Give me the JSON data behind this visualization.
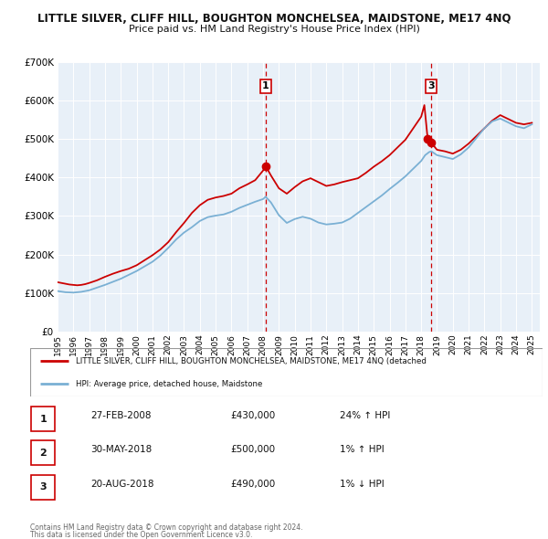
{
  "title": "LITTLE SILVER, CLIFF HILL, BOUGHTON MONCHELSEA, MAIDSTONE, ME17 4NQ",
  "subtitle": "Price paid vs. HM Land Registry's House Price Index (HPI)",
  "legend_line1": "LITTLE SILVER, CLIFF HILL, BOUGHTON MONCHELSEA, MAIDSTONE, ME17 4NQ (detached",
  "legend_line2": "HPI: Average price, detached house, Maidstone",
  "table_rows": [
    {
      "num": "1",
      "date": "27-FEB-2008",
      "price": "£430,000",
      "hpi": "24% ↑ HPI"
    },
    {
      "num": "2",
      "date": "30-MAY-2018",
      "price": "£500,000",
      "hpi": "1% ↑ HPI"
    },
    {
      "num": "3",
      "date": "20-AUG-2018",
      "price": "£490,000",
      "hpi": "1% ↓ HPI"
    }
  ],
  "footer1": "Contains HM Land Registry data © Crown copyright and database right 2024.",
  "footer2": "This data is licensed under the Open Government Licence v3.0.",
  "red_color": "#cc0000",
  "blue_color": "#7ab0d4",
  "bg_color": "#e8f0f8",
  "grid_color": "#c8d8e8",
  "outer_bg": "#f0f0f0",
  "ylim": [
    0,
    700000
  ],
  "yticks": [
    0,
    100000,
    200000,
    300000,
    400000,
    500000,
    600000,
    700000
  ],
  "xmin": 1995.0,
  "xmax": 2025.5,
  "marker1_x": 2008.16,
  "marker1_y": 430000,
  "marker2_x": 2018.41,
  "marker2_y": 500000,
  "marker3_x": 2018.64,
  "marker3_y": 490000,
  "vline1_x": 2008.16,
  "vline2_x": 2018.64,
  "red_line_data": [
    [
      1995.0,
      128000
    ],
    [
      1995.25,
      126000
    ],
    [
      1995.5,
      124000
    ],
    [
      1995.75,
      122000
    ],
    [
      1996.0,
      121000
    ],
    [
      1996.25,
      120000
    ],
    [
      1996.5,
      121000
    ],
    [
      1996.75,
      123000
    ],
    [
      1997.0,
      126000
    ],
    [
      1997.5,
      133000
    ],
    [
      1998.0,
      142000
    ],
    [
      1998.5,
      150000
    ],
    [
      1999.0,
      157000
    ],
    [
      1999.5,
      163000
    ],
    [
      2000.0,
      172000
    ],
    [
      2000.5,
      185000
    ],
    [
      2001.0,
      198000
    ],
    [
      2001.5,
      213000
    ],
    [
      2002.0,
      232000
    ],
    [
      2002.5,
      258000
    ],
    [
      2003.0,
      282000
    ],
    [
      2003.5,
      308000
    ],
    [
      2004.0,
      328000
    ],
    [
      2004.5,
      342000
    ],
    [
      2005.0,
      348000
    ],
    [
      2005.5,
      352000
    ],
    [
      2006.0,
      358000
    ],
    [
      2006.5,
      372000
    ],
    [
      2007.0,
      382000
    ],
    [
      2007.5,
      393000
    ],
    [
      2008.0,
      418000
    ],
    [
      2008.16,
      430000
    ],
    [
      2008.5,
      405000
    ],
    [
      2009.0,
      372000
    ],
    [
      2009.5,
      358000
    ],
    [
      2010.0,
      375000
    ],
    [
      2010.5,
      390000
    ],
    [
      2011.0,
      398000
    ],
    [
      2011.5,
      388000
    ],
    [
      2012.0,
      378000
    ],
    [
      2012.5,
      382000
    ],
    [
      2013.0,
      388000
    ],
    [
      2013.5,
      393000
    ],
    [
      2014.0,
      398000
    ],
    [
      2014.5,
      412000
    ],
    [
      2015.0,
      428000
    ],
    [
      2015.5,
      442000
    ],
    [
      2016.0,
      458000
    ],
    [
      2016.5,
      478000
    ],
    [
      2017.0,
      498000
    ],
    [
      2017.5,
      528000
    ],
    [
      2018.0,
      558000
    ],
    [
      2018.2,
      588000
    ],
    [
      2018.41,
      500000
    ],
    [
      2018.5,
      492000
    ],
    [
      2018.64,
      490000
    ],
    [
      2019.0,
      472000
    ],
    [
      2019.5,
      468000
    ],
    [
      2020.0,
      462000
    ],
    [
      2020.5,
      472000
    ],
    [
      2021.0,
      488000
    ],
    [
      2021.5,
      508000
    ],
    [
      2022.0,
      528000
    ],
    [
      2022.5,
      548000
    ],
    [
      2023.0,
      562000
    ],
    [
      2023.5,
      552000
    ],
    [
      2024.0,
      542000
    ],
    [
      2024.5,
      538000
    ],
    [
      2025.0,
      542000
    ]
  ],
  "blue_line_data": [
    [
      1995.0,
      105000
    ],
    [
      1995.5,
      102000
    ],
    [
      1996.0,
      101000
    ],
    [
      1996.5,
      103000
    ],
    [
      1997.0,
      107000
    ],
    [
      1997.5,
      114000
    ],
    [
      1998.0,
      121000
    ],
    [
      1998.5,
      129000
    ],
    [
      1999.0,
      137000
    ],
    [
      1999.5,
      147000
    ],
    [
      2000.0,
      157000
    ],
    [
      2000.5,
      169000
    ],
    [
      2001.0,
      181000
    ],
    [
      2001.5,
      197000
    ],
    [
      2002.0,
      217000
    ],
    [
      2002.5,
      239000
    ],
    [
      2003.0,
      257000
    ],
    [
      2003.5,
      271000
    ],
    [
      2004.0,
      287000
    ],
    [
      2004.5,
      297000
    ],
    [
      2005.0,
      301000
    ],
    [
      2005.5,
      304000
    ],
    [
      2006.0,
      311000
    ],
    [
      2006.5,
      321000
    ],
    [
      2007.0,
      329000
    ],
    [
      2007.5,
      337000
    ],
    [
      2008.0,
      344000
    ],
    [
      2008.16,
      350000
    ],
    [
      2008.5,
      335000
    ],
    [
      2009.0,
      302000
    ],
    [
      2009.5,
      282000
    ],
    [
      2010.0,
      292000
    ],
    [
      2010.5,
      298000
    ],
    [
      2011.0,
      293000
    ],
    [
      2011.5,
      283000
    ],
    [
      2012.0,
      278000
    ],
    [
      2012.5,
      280000
    ],
    [
      2013.0,
      283000
    ],
    [
      2013.5,
      293000
    ],
    [
      2014.0,
      308000
    ],
    [
      2014.5,
      323000
    ],
    [
      2015.0,
      338000
    ],
    [
      2015.5,
      353000
    ],
    [
      2016.0,
      370000
    ],
    [
      2016.5,
      386000
    ],
    [
      2017.0,
      403000
    ],
    [
      2017.5,
      423000
    ],
    [
      2018.0,
      443000
    ],
    [
      2018.25,
      458000
    ],
    [
      2018.41,
      463000
    ],
    [
      2018.5,
      466000
    ],
    [
      2018.64,
      468000
    ],
    [
      2019.0,
      458000
    ],
    [
      2019.5,
      453000
    ],
    [
      2020.0,
      448000
    ],
    [
      2020.5,
      460000
    ],
    [
      2021.0,
      478000
    ],
    [
      2021.5,
      503000
    ],
    [
      2022.0,
      528000
    ],
    [
      2022.5,
      546000
    ],
    [
      2023.0,
      553000
    ],
    [
      2023.5,
      543000
    ],
    [
      2024.0,
      533000
    ],
    [
      2024.5,
      528000
    ],
    [
      2025.0,
      538000
    ]
  ]
}
